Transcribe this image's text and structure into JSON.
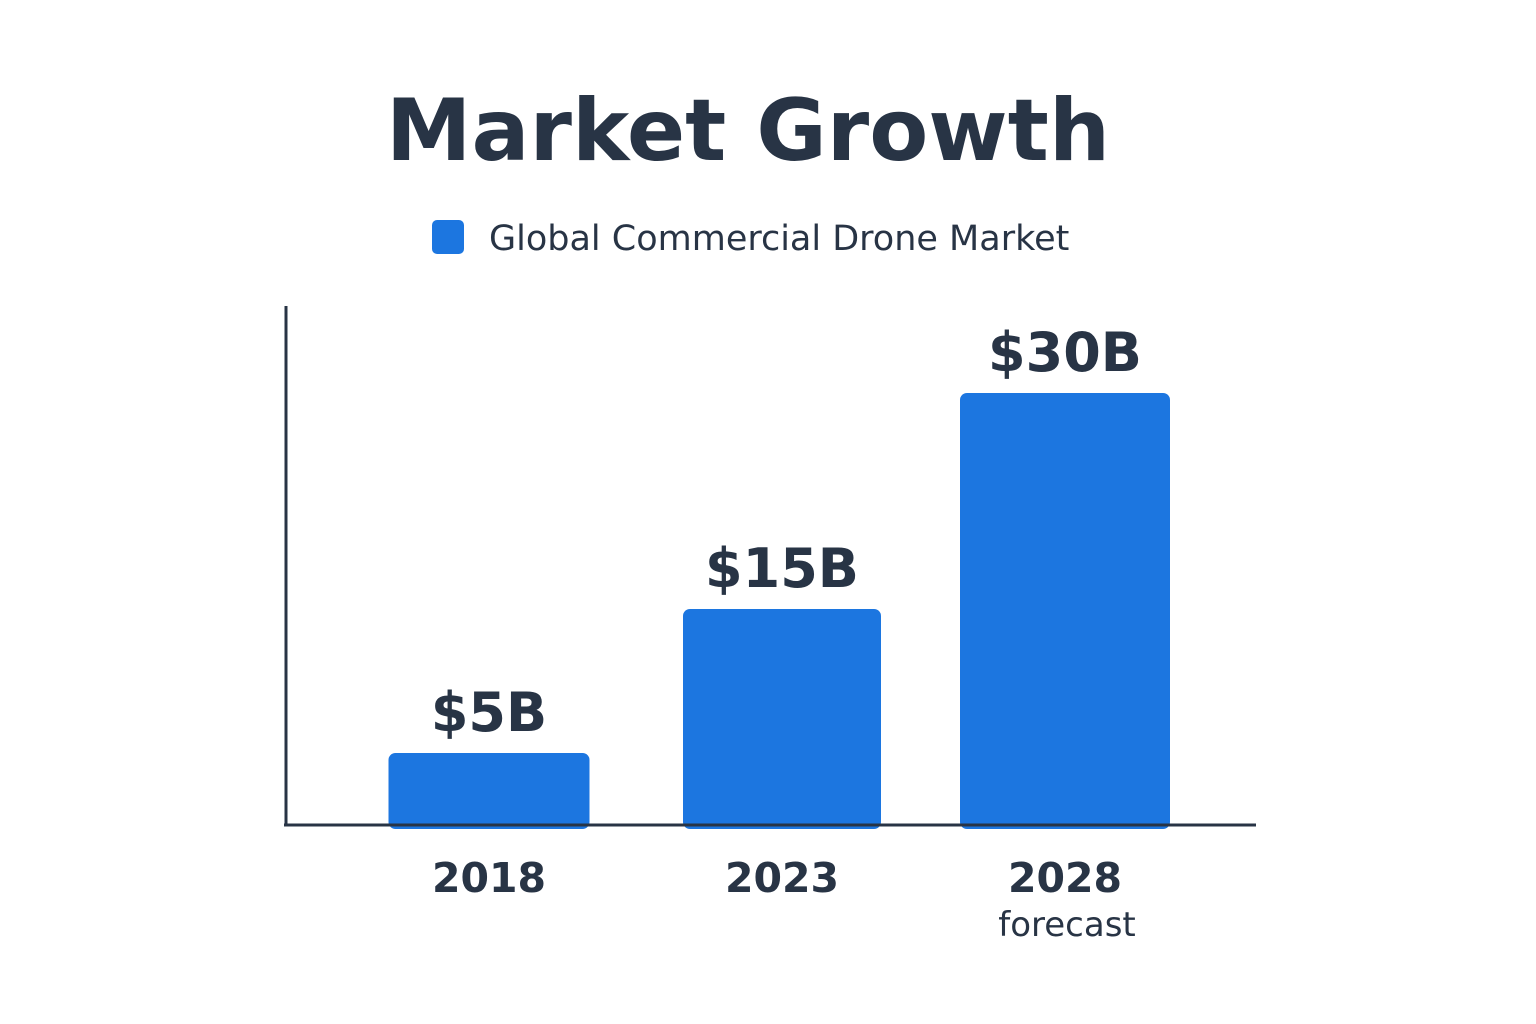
{
  "colors": {
    "bar": "#1c76e0",
    "text": "#283445",
    "axis": "#283445",
    "background": "#ffffff"
  },
  "chart_data": {
    "type": "bar",
    "title": "Market Growth",
    "xlabel": "",
    "ylabel": "",
    "ylim": [
      0,
      35
    ],
    "grid": false,
    "legend": {
      "placement": "top-center",
      "entries": [
        "Global Commercial Drone Market"
      ]
    },
    "categories": [
      "2018",
      "2023",
      "2028"
    ],
    "category_sublabels": [
      "",
      "",
      "forecast"
    ],
    "series": [
      {
        "name": "Global Commercial Drone Market",
        "values": [
          5,
          15,
          30
        ],
        "data_labels": [
          "$5B",
          "$15B",
          "$30B"
        ]
      }
    ]
  }
}
